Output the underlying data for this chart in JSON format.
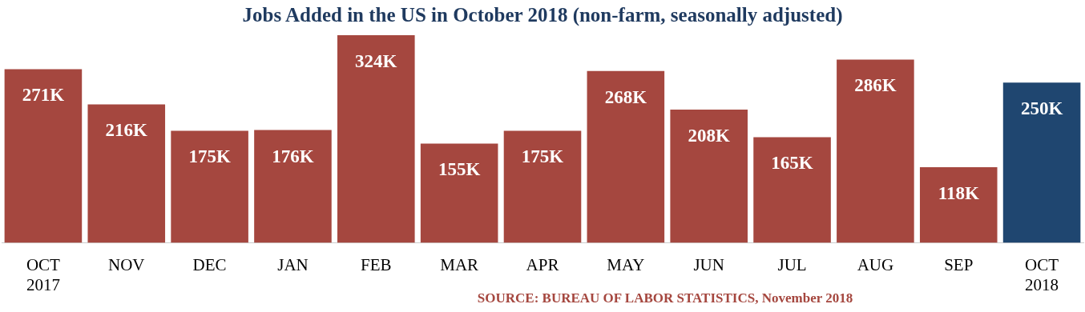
{
  "chart_data": {
    "type": "bar",
    "title": "Jobs Added in the US in October 2018 (non-farm, seasonally adjusted)",
    "categories": [
      "OCT\n2017",
      "NOV",
      "DEC",
      "JAN",
      "FEB",
      "MAR",
      "APR",
      "MAY",
      "JUN",
      "JUL",
      "AUG",
      "SEP",
      "OCT\n2018"
    ],
    "values": [
      271,
      216,
      175,
      176,
      324,
      155,
      175,
      268,
      208,
      165,
      286,
      118,
      250
    ],
    "value_labels": [
      "271K",
      "216K",
      "175K",
      "176K",
      "324K",
      "155K",
      "175K",
      "268K",
      "208K",
      "165K",
      "286K",
      "118K",
      "250K"
    ],
    "colors": [
      "#a5473f",
      "#a5473f",
      "#a5473f",
      "#a5473f",
      "#a5473f",
      "#a5473f",
      "#a5473f",
      "#a5473f",
      "#a5473f",
      "#a5473f",
      "#a5473f",
      "#a5473f",
      "#1f4670"
    ],
    "annotations": [
      "SOURCE: BUREAU OF LABOR STATISTICS, November 2018"
    ],
    "grid": false,
    "legend": false
  }
}
